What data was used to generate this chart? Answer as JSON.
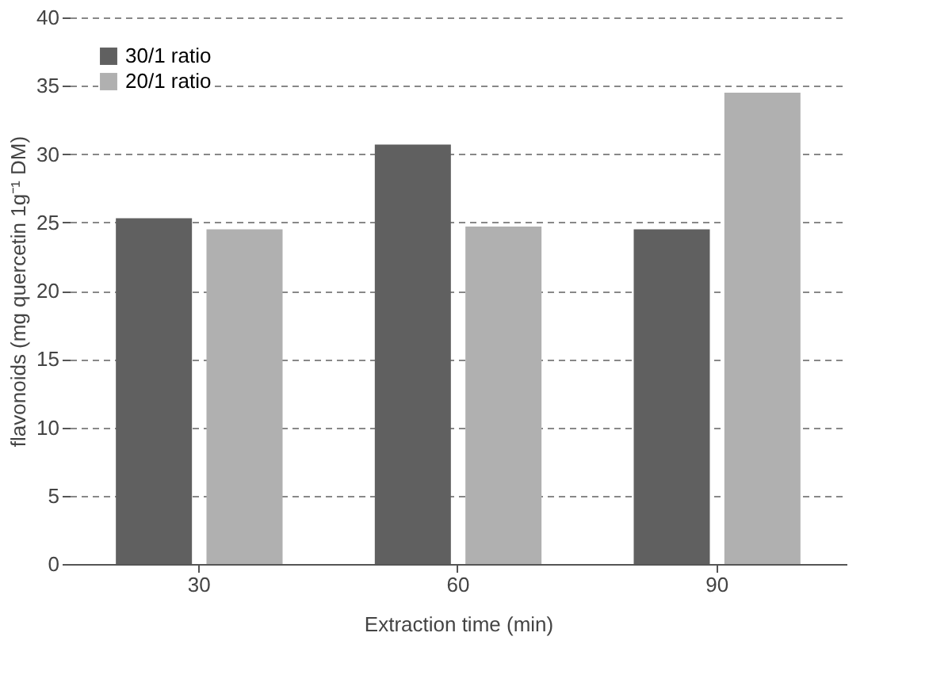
{
  "chart_data": {
    "type": "bar",
    "xlabel": "Extraction time (min)",
    "ylabel": "flavonoids (mg quercetin 1g⁻¹ DM)",
    "categories": [
      "30",
      "60",
      "90"
    ],
    "series": [
      {
        "name": "30/1 ratio",
        "color": "#606060",
        "values": [
          25.3,
          30.7,
          24.5
        ]
      },
      {
        "name": "20/1 ratio",
        "color": "#b0b0b0",
        "values": [
          24.5,
          24.7,
          34.5
        ]
      }
    ],
    "ylim": [
      0,
      40
    ],
    "yticks": [
      0,
      5,
      10,
      15,
      20,
      25,
      30,
      35,
      40
    ],
    "grid": "y",
    "legend": "top left"
  }
}
